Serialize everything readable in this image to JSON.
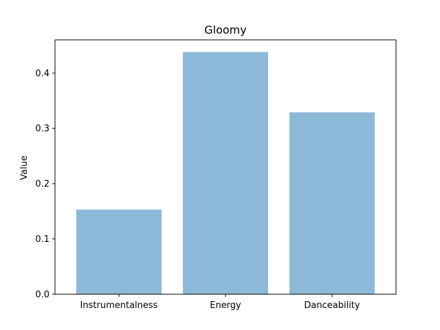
{
  "chart_data": {
    "type": "bar",
    "title": "Gloomy",
    "xlabel": "",
    "ylabel": "Value",
    "categories": [
      "Instrumentalness",
      "Energy",
      "Danceability"
    ],
    "values": [
      0.153,
      0.438,
      0.329
    ],
    "ylim": [
      0,
      0.46
    ],
    "yticks": [
      0.0,
      0.1,
      0.2,
      0.3,
      0.4
    ],
    "ytick_labels": [
      "0.0",
      "0.1",
      "0.2",
      "0.3",
      "0.4"
    ],
    "bar_color": "#8db9d9",
    "grid": false,
    "legend": "none"
  }
}
